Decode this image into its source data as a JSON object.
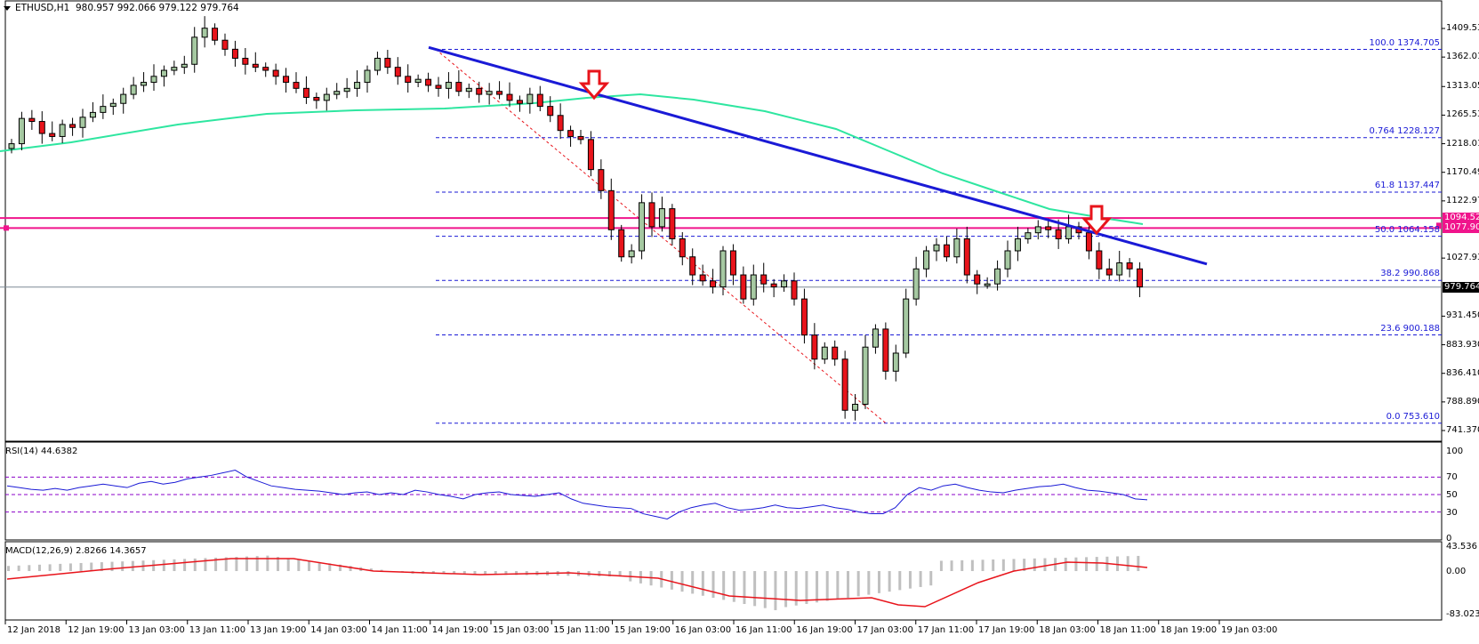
{
  "header": {
    "symbol": "ETHUSD,H1",
    "ohlc": "980.957 992.066 979.122 979.764"
  },
  "colors": {
    "bull": "#a6c9a2",
    "bear": "#e8141b",
    "outline": "#000000",
    "trendline": "#1a1ad6",
    "ma": "#2ee6a0",
    "fib": "#1a1ad6",
    "resistance": "#f0148c",
    "rsi_line": "#1a1ad6",
    "rsi_levels": "#8b00c8",
    "macd_hist": "#c0c0c0",
    "macd_signal": "#e8141b",
    "arrow": "#e8141b",
    "zigzag": "#e8141b",
    "current_price_line": "#7f8a96"
  },
  "price_axis": {
    "ticks": [
      "1409.530",
      "1362.010",
      "1313.050",
      "1265.530",
      "1218.010",
      "1170.490",
      "1122.970",
      "1027.930",
      "931.450",
      "883.930",
      "836.410",
      "788.890",
      "741.370"
    ],
    "current_price_tag": "979.764",
    "resistance_tags": [
      "1094.521",
      "1077.905"
    ]
  },
  "fib_levels": [
    {
      "label": "100.0  1374.705",
      "value": 1374.705
    },
    {
      "label": "0.764  1228.127",
      "value": 1228.127
    },
    {
      "label": "61.8  1137.447",
      "value": 1137.447
    },
    {
      "label": "50.0 1064.158",
      "value": 1064.158
    },
    {
      "label": "38.2  990.868",
      "value": 990.868
    },
    {
      "label": "23.6  900.188",
      "value": 900.188
    },
    {
      "label": "0.0  753.610",
      "value": 753.61
    }
  ],
  "rsi": {
    "title": "RSI(14) 44.6382",
    "axis": [
      "100",
      "70",
      "50",
      "30",
      "0"
    ]
  },
  "macd": {
    "title": "MACD(12,26,9) 2.8266 14.3657",
    "axis": [
      "43.536",
      "0.00",
      "-83.023"
    ]
  },
  "time_axis": [
    "12 Jan 2018",
    "12 Jan 19:00",
    "13 Jan 03:00",
    "13 Jan 11:00",
    "13 Jan 19:00",
    "14 Jan 03:00",
    "14 Jan 11:00",
    "14 Jan 19:00",
    "15 Jan 03:00",
    "15 Jan 11:00",
    "15 Jan 19:00",
    "16 Jan 03:00",
    "16 Jan 11:00",
    "16 Jan 19:00",
    "17 Jan 03:00",
    "17 Jan 11:00",
    "17 Jan 19:00",
    "18 Jan 03:00",
    "18 Jan 11:00",
    "18 Jan 19:00",
    "19 Jan 03:00"
  ],
  "chart_data": {
    "type": "candlestick",
    "title": "ETHUSD,H1",
    "symbol": "ETHUSD",
    "timeframe": "H1",
    "last_ohlc": {
      "open": 980.957,
      "high": 992.066,
      "low": 979.122,
      "close": 979.764
    },
    "ylim": [
      741.37,
      1430
    ],
    "x_tick_labels": [
      "12 Jan 2018",
      "12 Jan 19:00",
      "13 Jan 03:00",
      "13 Jan 11:00",
      "13 Jan 19:00",
      "14 Jan 03:00",
      "14 Jan 11:00",
      "14 Jan 19:00",
      "15 Jan 03:00",
      "15 Jan 11:00",
      "15 Jan 19:00",
      "16 Jan 03:00",
      "16 Jan 11:00",
      "16 Jan 19:00",
      "17 Jan 03:00",
      "17 Jan 11:00",
      "17 Jan 19:00",
      "18 Jan 03:00",
      "18 Jan 11:00",
      "18 Jan 19:00",
      "19 Jan 03:00"
    ],
    "candles_close_approx": [
      1218,
      1260,
      1255,
      1235,
      1230,
      1250,
      1245,
      1262,
      1270,
      1280,
      1285,
      1300,
      1315,
      1320,
      1330,
      1340,
      1345,
      1350,
      1395,
      1410,
      1390,
      1375,
      1360,
      1350,
      1345,
      1340,
      1330,
      1320,
      1310,
      1295,
      1290,
      1300,
      1305,
      1310,
      1320,
      1340,
      1360,
      1345,
      1330,
      1320,
      1325,
      1315,
      1310,
      1320,
      1305,
      1310,
      1300,
      1305,
      1300,
      1290,
      1285,
      1300,
      1280,
      1265,
      1240,
      1230,
      1225,
      1175,
      1140,
      1075,
      1030,
      1040,
      1120,
      1080,
      1110,
      1060,
      1030,
      1000,
      990,
      980,
      1040,
      1000,
      960,
      1000,
      985,
      980,
      990,
      960,
      900,
      860,
      880,
      860,
      775,
      785,
      880,
      910,
      840,
      870,
      960,
      1010,
      1040,
      1050,
      1030,
      1060,
      1000,
      985,
      985,
      1010,
      1040,
      1060,
      1070,
      1080,
      1075,
      1060,
      1080,
      1070,
      1040,
      1010,
      1000,
      1020,
      1010,
      980
    ],
    "fibonacci": [
      {
        "level": "100.0",
        "price": 1374.705
      },
      {
        "level": "0.764",
        "price": 1228.127
      },
      {
        "level": "61.8",
        "price": 1137.447
      },
      {
        "level": "50.0",
        "price": 1064.158
      },
      {
        "level": "38.2",
        "price": 990.868
      },
      {
        "level": "23.6",
        "price": 900.188
      },
      {
        "level": "0.0",
        "price": 753.61
      }
    ],
    "horizontal_lines": [
      1094.521,
      1077.905
    ],
    "current_price": 979.764,
    "trendline": {
      "from": {
        "label": "14 Jan 19:00",
        "price": 1378
      },
      "to": {
        "label": "19 Jan 03:00",
        "price": 1018
      }
    },
    "moving_average": "green MA rising from ~1218 to ~1310, then declining to ~1094",
    "annotations": [
      "Red down-arrow at ~15 Jan 19:00 touching trendline (~1305)",
      "Red down-arrow at ~18 Jan 19:00 touching trendline (~1075)"
    ],
    "rsi": {
      "period": 14,
      "value": 44.6382,
      "levels": [
        70,
        50,
        30
      ],
      "range": [
        0,
        100
      ]
    },
    "macd": {
      "params": [
        12,
        26,
        9
      ],
      "main": 2.8266,
      "signal": 14.3657,
      "range": [
        -83.023,
        43.536
      ]
    }
  }
}
